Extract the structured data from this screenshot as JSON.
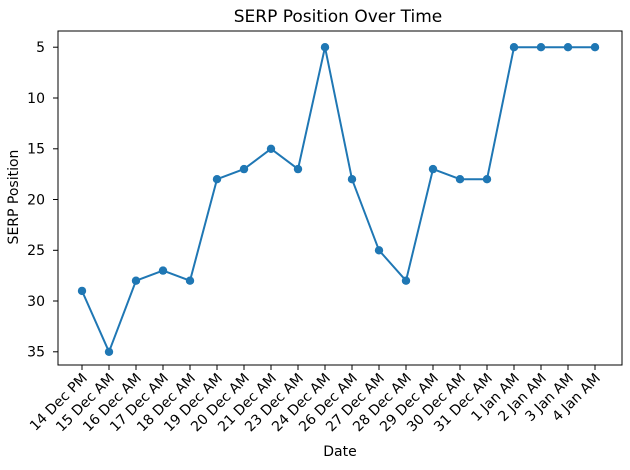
{
  "chart_data": {
    "type": "line",
    "title": "SERP Position Over Time",
    "xlabel": "Date",
    "ylabel": "SERP Position",
    "categories": [
      "14 Dec PM",
      "15 Dec AM",
      "16 Dec AM",
      "17 Dec AM",
      "18 Dec AM",
      "19 Dec AM",
      "20 Dec AM",
      "21 Dec AM",
      "23 Dec AM",
      "24 Dec AM",
      "26 Dec AM",
      "27 Dec AM",
      "28 Dec AM",
      "29 Dec AM",
      "30 Dec AM",
      "31 Dec AM",
      "1 Jan AM",
      "2 Jan AM",
      "3 Jan AM",
      "4 Jan AM"
    ],
    "values": [
      29,
      35,
      28,
      27,
      28,
      18,
      17,
      15,
      17,
      5,
      18,
      25,
      28,
      17,
      18,
      18,
      5,
      5,
      5,
      5
    ],
    "yticks": [
      5,
      10,
      15,
      20,
      25,
      30,
      35
    ],
    "ylim": [
      3.4,
      36.3
    ],
    "y_axis_inverted": true,
    "x_tick_rotation_deg": 45,
    "grid": false,
    "legend": null,
    "line_color": "#1f77b4",
    "marker": "circle",
    "axis_color": "#000000",
    "background_color": "#ffffff"
  }
}
